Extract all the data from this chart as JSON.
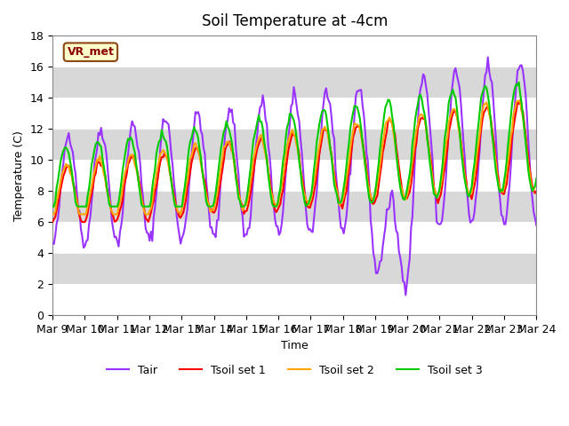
{
  "title": "Soil Temperature at -4cm",
  "xlabel": "Time",
  "ylabel": "Temperature (C)",
  "ylim": [
    0,
    18
  ],
  "label_text": "VR_met",
  "x_tick_labels": [
    "Mar 9",
    "Mar 10",
    "Mar 11",
    "Mar 12",
    "Mar 13",
    "Mar 14",
    "Mar 15",
    "Mar 16",
    "Mar 17",
    "Mar 18",
    "Mar 19",
    "Mar 20",
    "Mar 21",
    "Mar 22",
    "Mar 23",
    "Mar 24"
  ],
  "n_days": 15,
  "colors": {
    "Tair": "#9933ff",
    "Tsoil1": "#ff0000",
    "Tsoil2": "#ffa500",
    "Tsoil3": "#00cc00"
  },
  "bg_color": "#e8e8e8",
  "band_colors": [
    "#ffffff",
    "#d8d8d8"
  ],
  "line_width": 1.5
}
